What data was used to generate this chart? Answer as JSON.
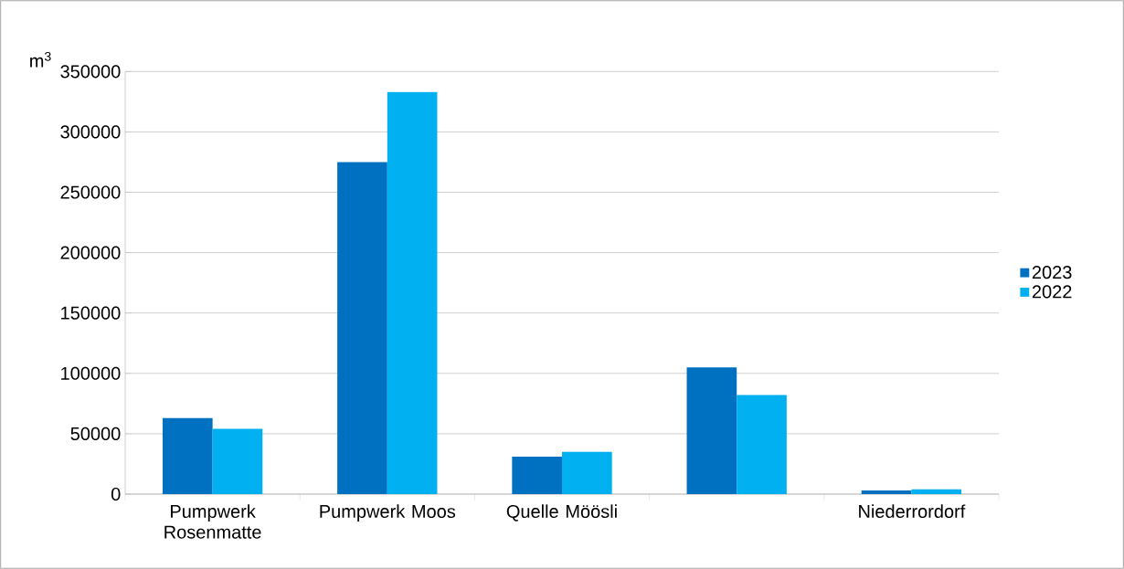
{
  "chart_data": {
    "type": "bar",
    "ylabel": "m$^{3}$",
    "categories": [
      "Pumpwerk Rosenmatte",
      "Pumpwerk Moos",
      "Quelle Möösli",
      null,
      "Niederrordorf"
    ],
    "series": [
      {
        "name": "2023",
        "color": "#0070c0",
        "values": [
          63000,
          275000,
          31000,
          105000,
          3000
        ]
      },
      {
        "name": "2022",
        "color": "#00b0f0",
        "values": [
          54000,
          333000,
          35000,
          82000,
          4000
        ]
      }
    ],
    "ylim": [
      0,
      350000
    ],
    "yticks": [
      0,
      50000,
      100000,
      150000,
      200000,
      250000,
      300000,
      350000
    ],
    "grid": "y",
    "legend": "right"
  }
}
